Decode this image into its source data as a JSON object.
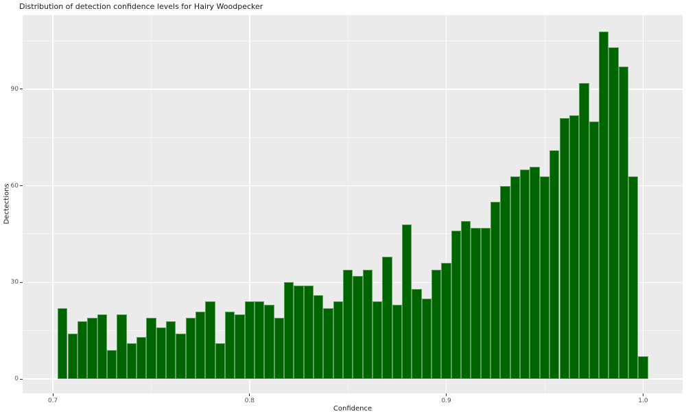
{
  "title": "Distribution of detection confidence levels for Hairy Woodpecker",
  "chart_data": {
    "type": "bar",
    "subtype": "histogram",
    "title": "Distribution of detection confidence levels for Hairy Woodpecker",
    "xlabel": "Confidence",
    "ylabel": "Dectections",
    "legend": "none",
    "grid": "major and minor white gridlines on gray panel",
    "bin_width": 0.005,
    "bin_centers": [
      0.705,
      0.71,
      0.715,
      0.72,
      0.725,
      0.73,
      0.735,
      0.74,
      0.745,
      0.75,
      0.755,
      0.76,
      0.765,
      0.77,
      0.775,
      0.78,
      0.785,
      0.79,
      0.795,
      0.8,
      0.805,
      0.81,
      0.815,
      0.82,
      0.825,
      0.83,
      0.835,
      0.84,
      0.845,
      0.85,
      0.855,
      0.86,
      0.865,
      0.87,
      0.875,
      0.88,
      0.885,
      0.89,
      0.895,
      0.9,
      0.905,
      0.91,
      0.915,
      0.92,
      0.925,
      0.93,
      0.935,
      0.94,
      0.945,
      0.95,
      0.955,
      0.96,
      0.965,
      0.97,
      0.975,
      0.98,
      0.985,
      0.99,
      0.995,
      1.0
    ],
    "values": [
      22,
      14,
      18,
      19,
      20,
      9,
      20,
      11,
      13,
      19,
      16,
      18,
      14,
      19,
      21,
      24,
      11,
      21,
      20,
      24,
      24,
      23,
      19,
      30,
      29,
      29,
      26,
      22,
      24,
      34,
      32,
      34,
      24,
      38,
      23,
      48,
      28,
      25,
      34,
      36,
      46,
      49,
      47,
      47,
      55,
      60,
      63,
      65,
      66,
      63,
      71,
      81,
      82,
      92,
      80,
      108,
      103,
      97,
      63,
      7
    ],
    "x_tick_labels": [
      "0.7",
      "0.8",
      "0.9",
      "1.0"
    ],
    "x_tick_values": [
      0.7,
      0.8,
      0.9,
      1.0
    ],
    "x_minor_values": [
      0.75,
      0.85,
      0.95
    ],
    "y_tick_labels": [
      "0",
      "30",
      "60",
      "90"
    ],
    "y_tick_values": [
      0,
      30,
      60,
      90
    ],
    "y_minor_values": [
      15,
      45,
      75,
      105
    ],
    "xlim": [
      0.685,
      1.02
    ],
    "ylim": [
      -4.5,
      113
    ],
    "colors": {
      "bar_fill": "#006400",
      "bar_stroke": "#5ea05e",
      "panel_background": "#ebebeb",
      "grid_major": "#ffffff",
      "grid_minor": "#ffffff",
      "tick_label": "#4d4d4d",
      "tick_mark": "#333333",
      "axis_title": "#1a1a1a",
      "title": "#1a1a1a",
      "figure_background": "#ffffff"
    }
  }
}
